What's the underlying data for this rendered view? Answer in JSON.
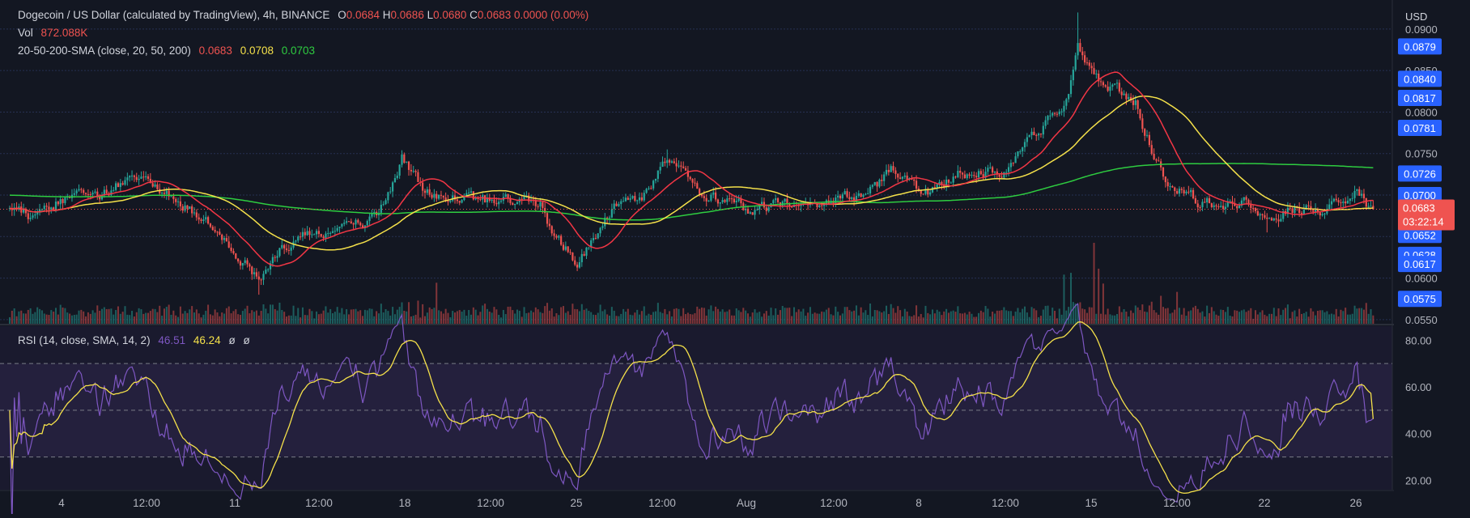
{
  "header": {
    "symbol": "Dogecoin / US Dollar (calculated by TradingView), 4h, BINANCE",
    "o_label": "O",
    "o_value": "0.0684",
    "h_label": "H",
    "h_value": "0.0686",
    "l_label": "L",
    "l_value": "0.0680",
    "c_label": "C",
    "c_value": "0.0683",
    "change": "0.0000 (0.00%)"
  },
  "vol_legend": {
    "label": "Vol",
    "value": "872.088K"
  },
  "sma_legend": {
    "label": "20-50-200-SMA (close, 20, 50, 200)",
    "v20": "0.0683",
    "v50": "0.0708",
    "v200": "0.0703"
  },
  "rsi_legend": {
    "label": "RSI (14, close, SMA, 14, 2)",
    "rsi": "46.51",
    "sma": "46.24",
    "extra1": "ø",
    "extra2": "ø"
  },
  "colors": {
    "background": "#131722",
    "up": "#26a69a",
    "down": "#ef5350",
    "sma20": "#f23645",
    "sma50": "#f5e14a",
    "sma200": "#2ecc40",
    "rsi": "#7e57c2",
    "rsi_sma": "#f5e14a",
    "badge": "#2962ff",
    "current_badge": "#ef5350"
  },
  "chart_data": [
    {
      "type": "candlestick",
      "title": "Dogecoin / US Dollar (calculated by TradingView), 4h, BINANCE",
      "currency": "USD",
      "ylim": [
        0.0545,
        0.0935
      ],
      "y_ticks": [
        "0.0900",
        "0.0850",
        "0.0800",
        "0.0750",
        "0.0700",
        "0.0650",
        "0.0600",
        "0.0550"
      ],
      "x_ticks": [
        "4",
        "12:00",
        "11",
        "12:00",
        "18",
        "12:00",
        "25",
        "12:00",
        "Aug",
        "12:00",
        "8",
        "12:00",
        "15",
        "12:00",
        "22",
        "26"
      ],
      "current_price": "0.0683",
      "countdown": "03:22:14",
      "price_labels": [
        "0.0879",
        "0.0840",
        "0.0817",
        "0.0781",
        "0.0726",
        "0.0700",
        "0.0652",
        "0.0628",
        "0.0617",
        "0.0575"
      ],
      "series": [
        {
          "name": "Dogecoin / US Dollar",
          "kind": "candles",
          "anchors": [
            [
              0,
              0.0683
            ],
            [
              12,
              0.0673
            ],
            [
              22,
              0.0695
            ],
            [
              38,
              0.07
            ],
            [
              58,
              0.0725
            ],
            [
              67,
              0.07
            ],
            [
              75,
              0.069
            ],
            [
              92,
              0.065
            ],
            [
              108,
              0.06
            ],
            [
              118,
              0.064
            ],
            [
              142,
              0.0662
            ],
            [
              158,
              0.067
            ],
            [
              164,
              0.0703
            ],
            [
              170,
              0.0745
            ],
            [
              180,
              0.07
            ],
            [
              204,
              0.0693
            ],
            [
              230,
              0.069
            ],
            [
              234,
              0.066
            ],
            [
              246,
              0.062
            ],
            [
              253,
              0.0645
            ],
            [
              262,
              0.069
            ],
            [
              272,
              0.069
            ],
            [
              280,
              0.072
            ],
            [
              285,
              0.0745
            ],
            [
              300,
              0.0705
            ],
            [
              320,
              0.0683
            ],
            [
              352,
              0.069
            ],
            [
              372,
              0.0703
            ],
            [
              382,
              0.0728
            ],
            [
              396,
              0.07
            ],
            [
              412,
              0.0725
            ],
            [
              430,
              0.0728
            ],
            [
              445,
              0.0775
            ],
            [
              458,
              0.081
            ],
            [
              463,
              0.088
            ],
            [
              472,
              0.084
            ],
            [
              488,
              0.0815
            ],
            [
              492,
              0.0778
            ],
            [
              500,
              0.0723
            ],
            [
              515,
              0.0693
            ],
            [
              535,
              0.069
            ],
            [
              545,
              0.0665
            ],
            [
              555,
              0.0683
            ],
            [
              575,
              0.0685
            ],
            [
              584,
              0.0705
            ],
            [
              590,
              0.0683
            ]
          ]
        },
        {
          "name": "SMA 20",
          "kind": "line",
          "smooth": 20
        },
        {
          "name": "SMA 50",
          "kind": "line",
          "smooth": 50
        },
        {
          "name": "SMA 200",
          "kind": "line",
          "smooth": 200
        }
      ]
    },
    {
      "type": "bar",
      "title": "Vol",
      "current": "872.088K",
      "relative_spikes": [
        [
          185,
          2.3
        ],
        [
          457,
          3.4
        ],
        [
          460,
          3.0
        ],
        [
          470,
          4.8
        ],
        [
          472,
          4.5
        ],
        [
          474,
          2.9
        ],
        [
          499,
          1.6
        ],
        [
          506,
          2.1
        ]
      ]
    },
    {
      "type": "line",
      "title": "RSI (14, close, SMA, 14, 2)",
      "ylim": [
        16,
        86
      ],
      "y_ticks": [
        "80.00",
        "60.00",
        "40.00",
        "20.00"
      ],
      "bands": [
        70,
        50,
        30
      ],
      "series": [
        {
          "name": "RSI",
          "value": "46.51"
        },
        {
          "name": "SMA",
          "value": "46.24"
        }
      ]
    }
  ]
}
